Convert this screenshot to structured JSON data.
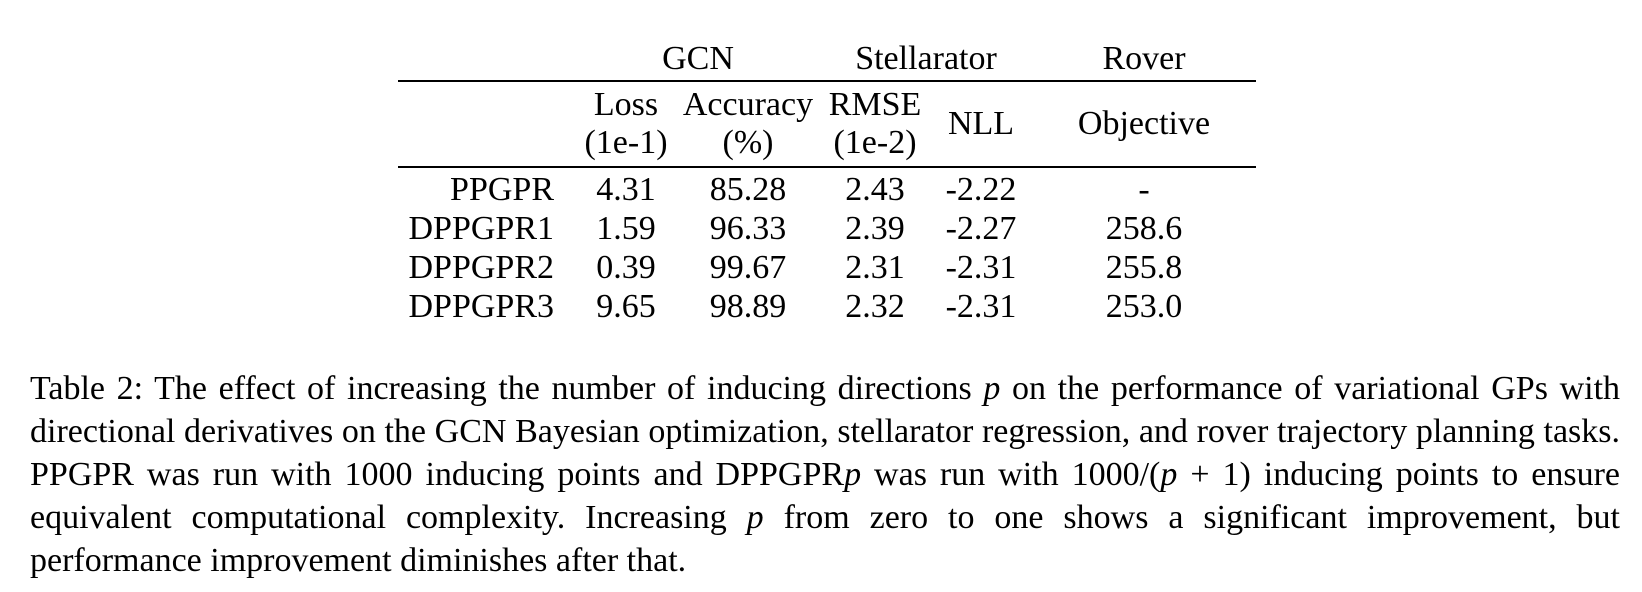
{
  "table": {
    "group_headers": [
      {
        "label": "GCN",
        "span": 2
      },
      {
        "label": "Stellarator",
        "span": 2
      },
      {
        "label": "Rover",
        "span": 1
      }
    ],
    "sub_headers": [
      {
        "line1": "Loss",
        "line2": "(1e-1)"
      },
      {
        "line1": "Accuracy",
        "line2": "(%)"
      },
      {
        "line1": "RMSE",
        "line2": "(1e-2)"
      },
      {
        "line1": "NLL",
        "line2": ""
      },
      {
        "line1": "Objective",
        "line2": ""
      }
    ],
    "rows": [
      {
        "label": "PPGPR",
        "values": [
          "4.31",
          "85.28",
          "2.43",
          "-2.22",
          "-"
        ]
      },
      {
        "label": "DPPGPR1",
        "values": [
          "1.59",
          "96.33",
          "2.39",
          "-2.27",
          "258.6"
        ]
      },
      {
        "label": "DPPGPR2",
        "values": [
          "0.39",
          "99.67",
          "2.31",
          "-2.31",
          "255.8"
        ]
      },
      {
        "label": "DPPGPR3",
        "values": [
          "9.65",
          "98.89",
          "2.32",
          "-2.31",
          "253.0"
        ]
      }
    ]
  },
  "caption": {
    "t1": "Table 2: The effect of increasing the number of inducing directions ",
    "p1": "p",
    "t2": " on the performance of variational GPs with directional derivatives on the GCN Bayesian optimization, stellarator regression, and rover trajectory planning tasks. PPGPR was run with 1000 inducing points and DPPGPR",
    "p2": "p",
    "t3": " was run with 1000/(",
    "p3": "p",
    "t4": " + 1) inducing points to ensure equivalent computational complexity. Increasing ",
    "p4": "p",
    "t5": " from zero to one shows a significant improvement, but performance improvement diminishes after that."
  }
}
